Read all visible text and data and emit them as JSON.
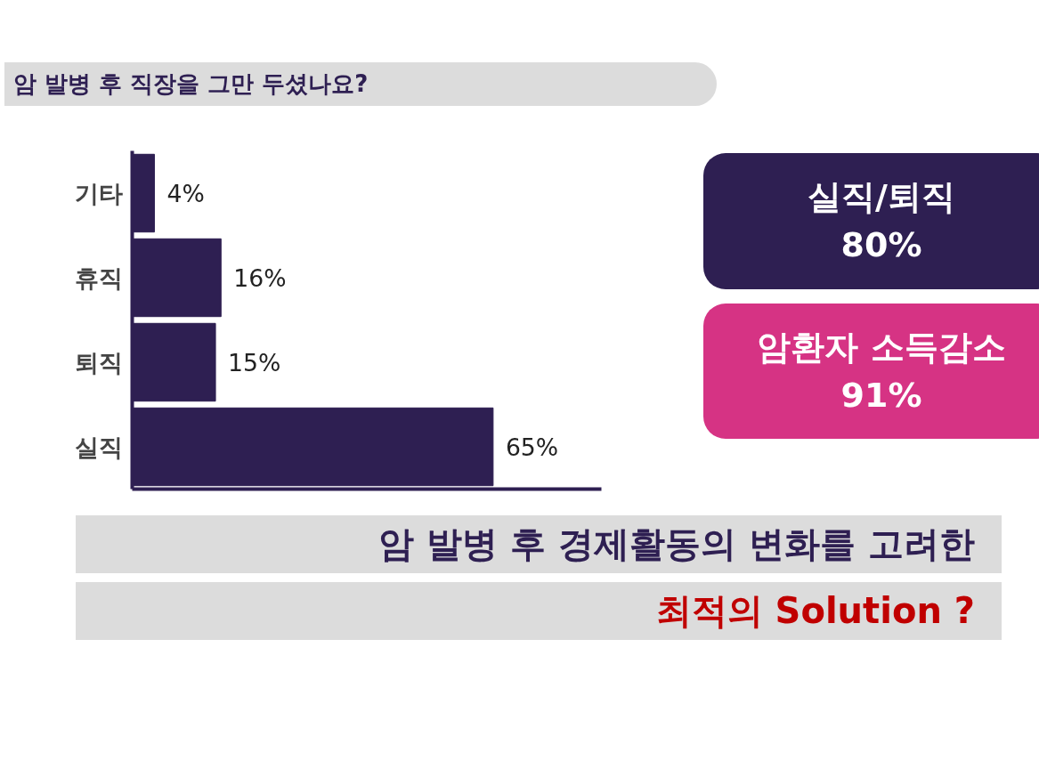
{
  "chart_data": {
    "type": "bar",
    "orientation": "horizontal",
    "title": "암 발병 후 직장을 그만 두셨나요?",
    "categories": [
      "기타",
      "휴직",
      "퇴직",
      "실직"
    ],
    "values": [
      4,
      16,
      15,
      65
    ],
    "value_labels": [
      "4%",
      "16%",
      "15%",
      "65%"
    ],
    "color": "#2e1f52",
    "grid": false,
    "tick_labels": "y",
    "annotations": [
      "실직/퇴직\n80%",
      "암환자 소득감소\n91%",
      "암 발병 후 경제활동의 변화를 고려한",
      "최적의 Solution ?"
    ]
  }
}
